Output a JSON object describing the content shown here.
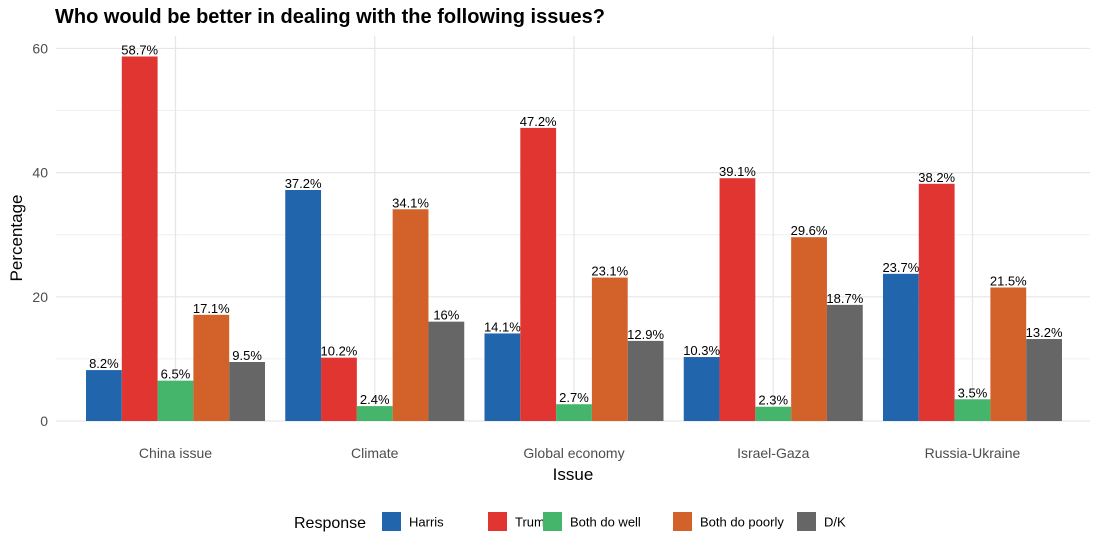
{
  "chart_data": {
    "type": "bar",
    "title": "Who would be better in dealing with the following issues?",
    "xlabel": "Issue",
    "ylabel": "Percentage",
    "ylim": [
      0,
      62
    ],
    "yticks": [
      0,
      20,
      40,
      60
    ],
    "grid": true,
    "legend_title": "Response",
    "legend_position": "bottom",
    "categories": [
      "China issue",
      "Climate",
      "Global economy",
      "Israel-Gaza",
      "Russia-Ukraine"
    ],
    "series": [
      {
        "name": "Harris",
        "color": "#2166ac",
        "values": [
          8.2,
          37.2,
          14.1,
          10.3,
          23.7
        ],
        "labels": [
          "8.2%",
          "37.2%",
          "14.1%",
          "10.3%",
          "23.7%"
        ]
      },
      {
        "name": "Trump",
        "color": "#e03531",
        "values": [
          58.7,
          10.2,
          47.2,
          39.1,
          38.2
        ],
        "labels": [
          "58.7%",
          "10.2%",
          "47.2%",
          "39.1%",
          "38.2%"
        ]
      },
      {
        "name": "Both do well",
        "color": "#45b56b",
        "values": [
          6.5,
          2.4,
          2.7,
          2.3,
          3.5
        ],
        "labels": [
          "6.5%",
          "2.4%",
          "2.7%",
          "2.3%",
          "3.5%"
        ]
      },
      {
        "name": "Both do poorly",
        "color": "#d2622a",
        "values": [
          17.1,
          34.1,
          23.1,
          29.6,
          21.5
        ],
        "labels": [
          "17.1%",
          "34.1%",
          "23.1%",
          "29.6%",
          "21.5%"
        ]
      },
      {
        "name": "D/K",
        "color": "#666666",
        "values": [
          9.5,
          16,
          12.9,
          18.7,
          13.2
        ],
        "labels": [
          "9.5%",
          "16%",
          "12.9%",
          "18.7%",
          "13.2%"
        ]
      }
    ]
  }
}
